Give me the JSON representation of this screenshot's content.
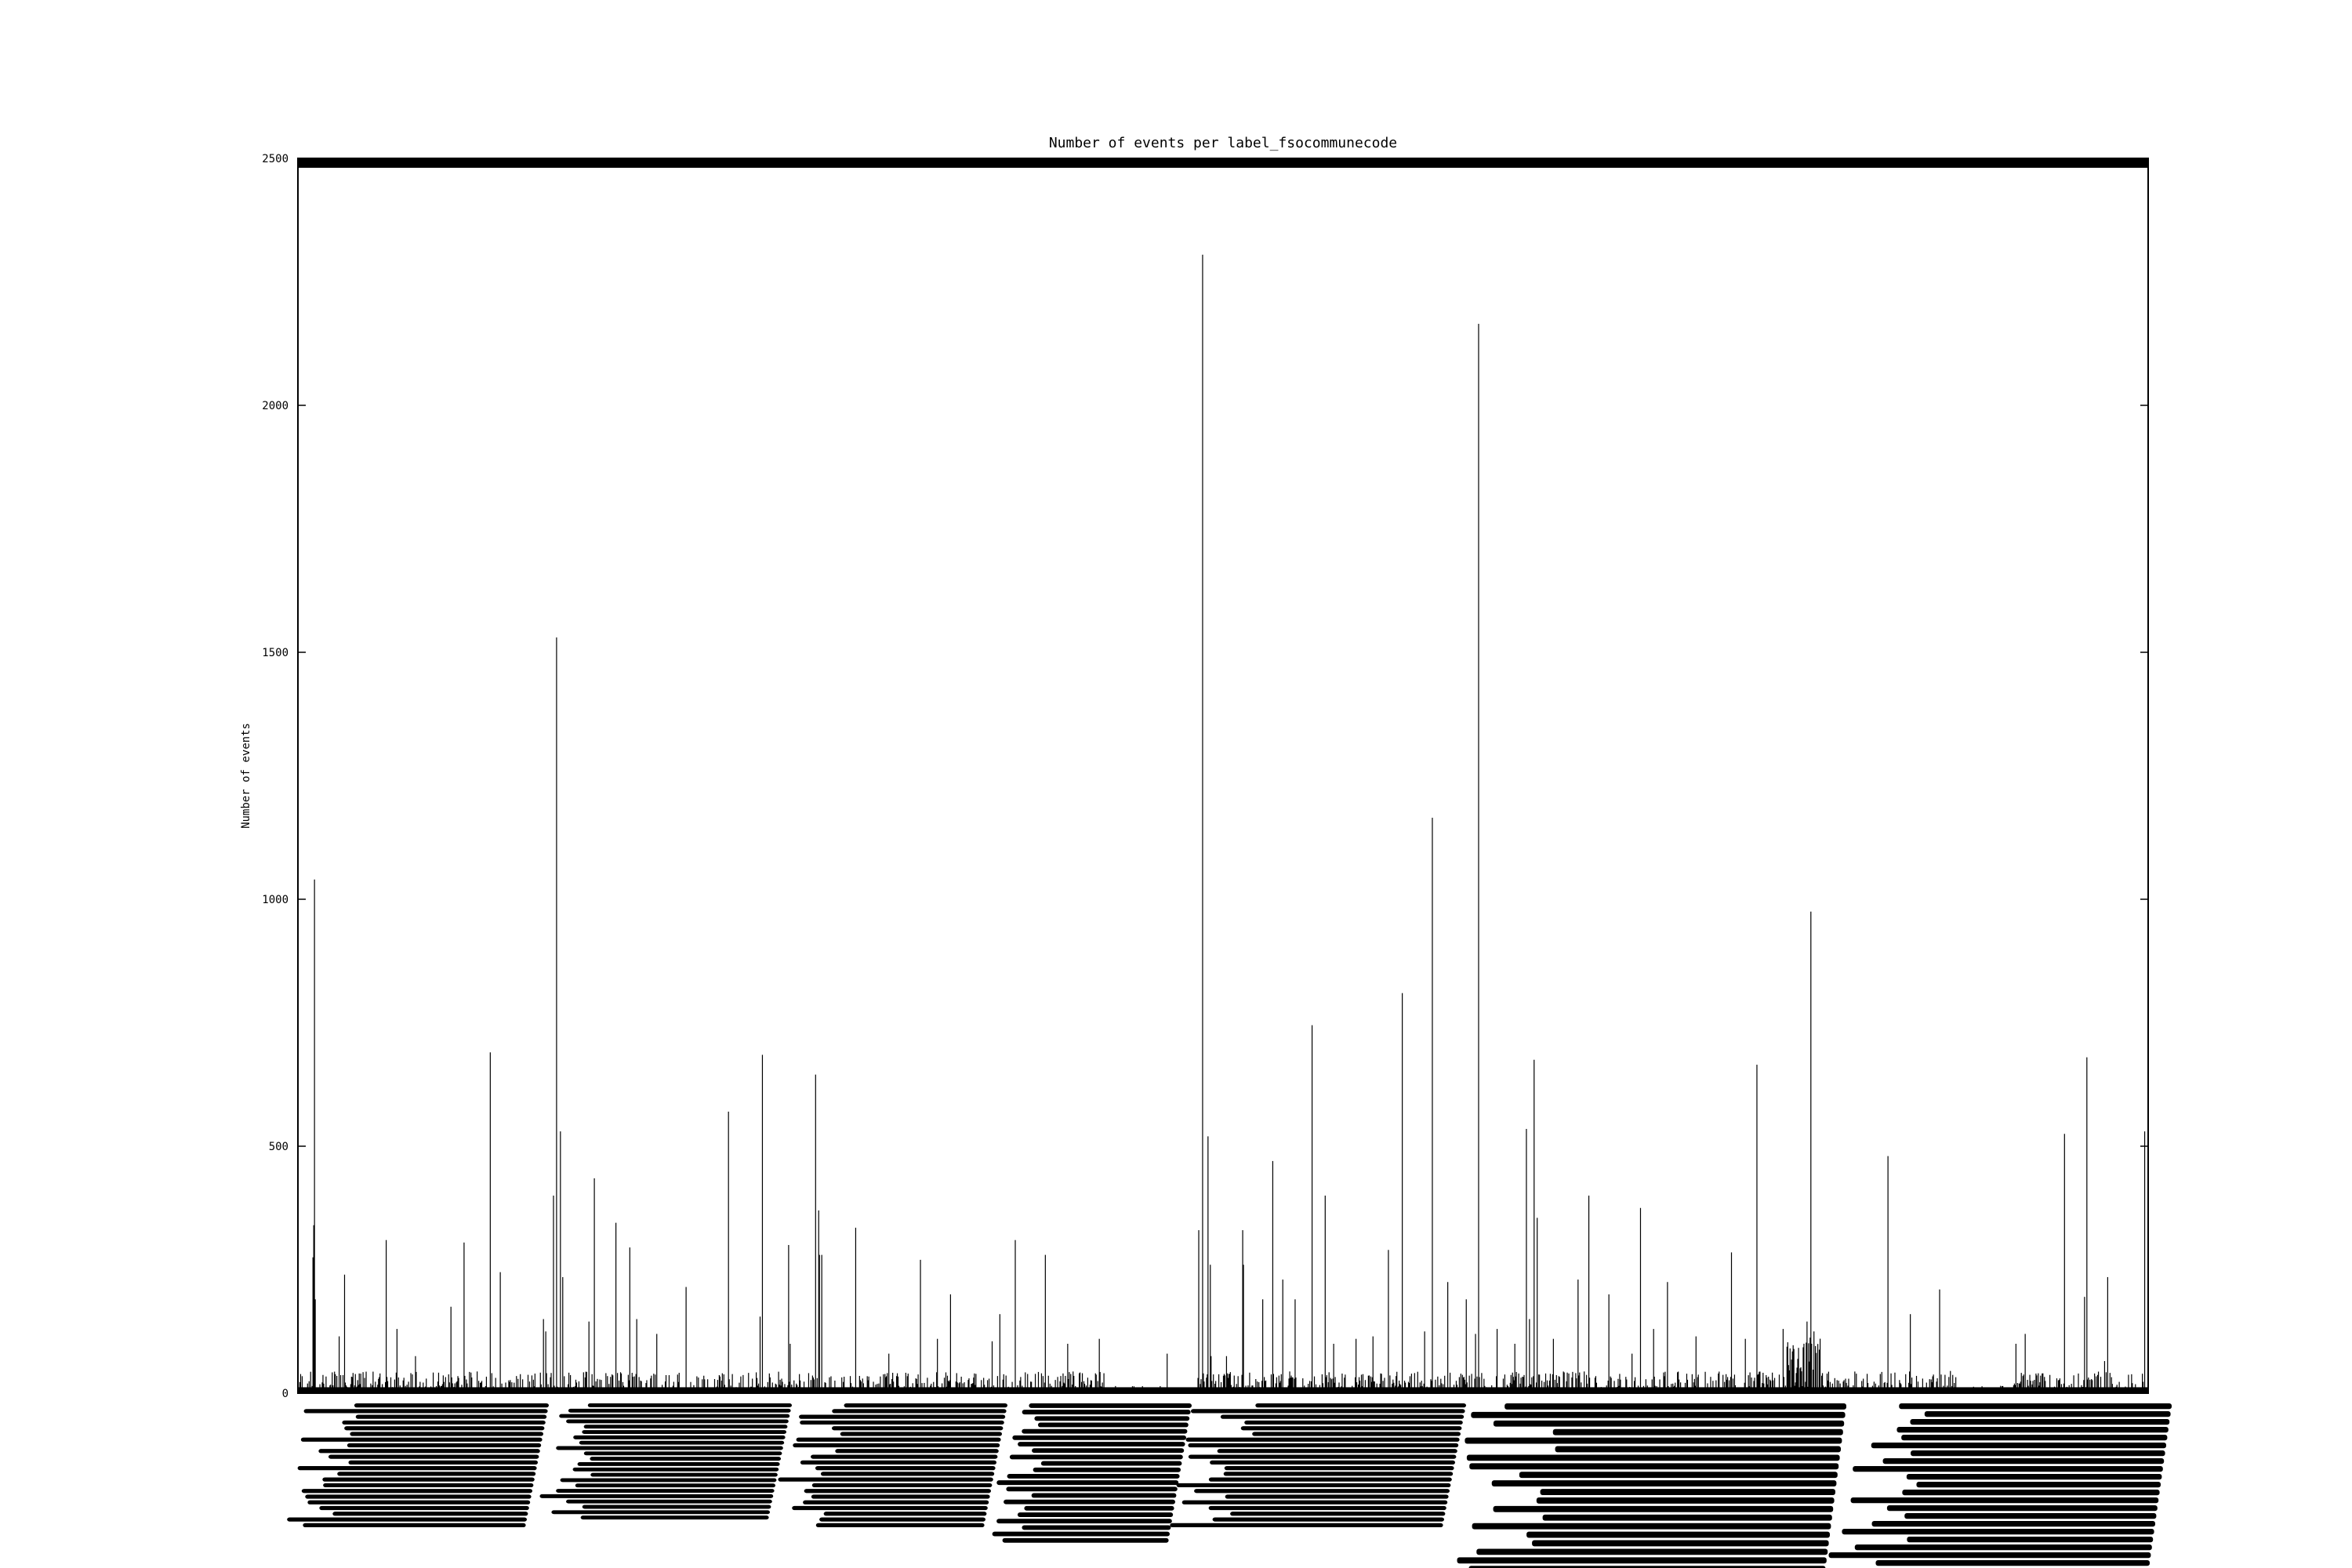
{
  "chart_data": {
    "type": "bar",
    "title": "Number of events per label_fsocommunecode",
    "xlabel": "",
    "ylabel": "Number of events",
    "ylim": [
      0,
      2500
    ],
    "yticks": [
      0,
      500,
      1000,
      1500,
      2000,
      2500
    ],
    "grid": false,
    "legend": "none",
    "bar_color": "#000000",
    "category_count": 2400,
    "series": [
      {
        "values_sparse": [
          [
            21,
            1040
          ],
          [
            20,
            340
          ],
          [
            19,
            275
          ],
          [
            22,
            190
          ],
          [
            60,
            240
          ],
          [
            53,
            115
          ],
          [
            114,
            310
          ],
          [
            128,
            130
          ],
          [
            152,
            75
          ],
          [
            198,
            175
          ],
          [
            215,
            305
          ],
          [
            249,
            690
          ],
          [
            262,
            245
          ],
          [
            321,
            125
          ],
          [
            318,
            150
          ],
          [
            331,
            400
          ],
          [
            335,
            1530
          ],
          [
            340,
            530
          ],
          [
            343,
            235
          ],
          [
            377,
            145
          ],
          [
            384,
            435
          ],
          [
            412,
            345
          ],
          [
            430,
            295
          ],
          [
            439,
            150
          ],
          [
            465,
            120
          ],
          [
            503,
            215
          ],
          [
            558,
            570
          ],
          [
            599,
            155
          ],
          [
            602,
            685
          ],
          [
            638,
            100
          ],
          [
            636,
            300
          ],
          [
            671,
            645
          ],
          [
            675,
            370
          ],
          [
            679,
            280
          ],
          [
            676,
            280
          ],
          [
            723,
            335
          ],
          [
            766,
            80
          ],
          [
            807,
            270
          ],
          [
            829,
            110
          ],
          [
            846,
            200
          ],
          [
            900,
            105
          ],
          [
            910,
            160
          ],
          [
            930,
            310
          ],
          [
            969,
            280
          ],
          [
            998,
            100
          ],
          [
            1039,
            110
          ],
          [
            1127,
            80
          ],
          [
            1184,
            75
          ],
          [
            1204,
            75
          ],
          [
            1225,
            110
          ],
          [
            1225,
            330
          ],
          [
            1226,
            260
          ],
          [
            1251,
            190
          ],
          [
            1264,
            470
          ],
          [
            1277,
            230
          ],
          [
            1293,
            190
          ],
          [
            1315,
            745
          ],
          [
            1332,
            400
          ],
          [
            1343,
            100
          ],
          [
            1372,
            110
          ],
          [
            1394,
            115
          ],
          [
            1414,
            290
          ],
          [
            1432,
            810
          ],
          [
            1461,
            125
          ],
          [
            1471,
            1165
          ],
          [
            1491,
            225
          ],
          [
            1515,
            190
          ],
          [
            1555,
            130
          ],
          [
            1578,
            100
          ],
          [
            1593,
            535
          ],
          [
            1597,
            150
          ],
          [
            1603,
            675
          ],
          [
            1607,
            355
          ],
          [
            1628,
            110
          ],
          [
            1660,
            230
          ],
          [
            1674,
            400
          ],
          [
            1700,
            200
          ],
          [
            1730,
            80
          ],
          [
            1741,
            375
          ],
          [
            1758,
            130
          ],
          [
            1776,
            225
          ],
          [
            1813,
            115
          ],
          [
            1859,
            285
          ],
          [
            1877,
            110
          ],
          [
            1892,
            665
          ],
          [
            1926,
            130
          ],
          [
            1957,
            145
          ],
          [
            1962,
            975
          ],
          [
            1966,
            125
          ],
          [
            2062,
            480
          ],
          [
            2091,
            160
          ],
          [
            2129,
            210
          ],
          [
            2143,
            45
          ],
          [
            2228,
            100
          ],
          [
            2240,
            120
          ],
          [
            2291,
            525
          ],
          [
            2320,
            680
          ],
          [
            2317,
            195
          ],
          [
            2343,
            65
          ],
          [
            2347,
            235
          ],
          [
            2395,
            530
          ]
        ],
        "background_level": 20
      },
      {
        "values_sparse": [
          [
            1173,
            2305
          ],
          [
            1531,
            2165
          ],
          [
            1180,
            520
          ],
          [
            1183,
            260
          ],
          [
            1168,
            330
          ],
          [
            1527,
            120
          ]
        ]
      }
    ]
  }
}
